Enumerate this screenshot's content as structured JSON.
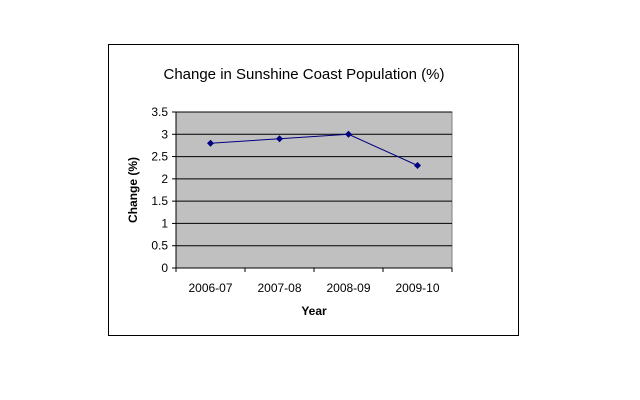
{
  "chart_data": {
    "type": "line",
    "title": "Change in Sunshine Coast Population (%)",
    "xlabel": "Year",
    "ylabel": "Change (%)",
    "categories": [
      "2006-07",
      "2007-08",
      "2008-09",
      "2009-10"
    ],
    "series": [
      {
        "values": [
          2.8,
          2.9,
          3.0,
          2.3
        ]
      }
    ],
    "ylim": [
      0,
      3.5
    ],
    "yticks": [
      "0",
      "0.5",
      "1",
      "1.5",
      "2",
      "2.5",
      "3",
      "3.5"
    ],
    "grid": true,
    "legend": "none",
    "colors": {
      "plot_background": "#c0c0c0",
      "line": "#000080",
      "grid": "#000000"
    }
  }
}
